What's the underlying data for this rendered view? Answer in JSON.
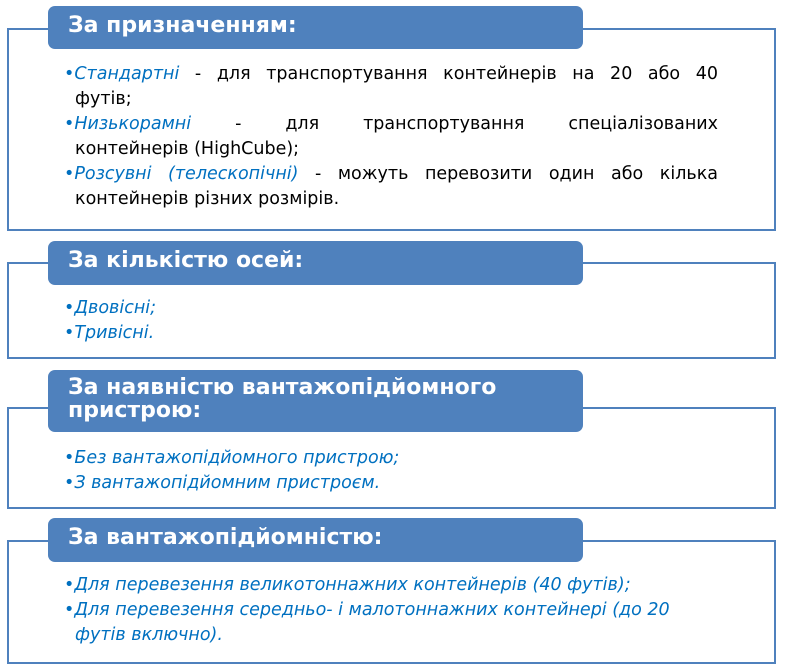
{
  "colors": {
    "header": "#4f81bd",
    "border": "#4f81bd",
    "accent_text": "#0070c0"
  },
  "bullet": "•",
  "sections": [
    {
      "title": "За призначенням:",
      "items": [
        {
          "term": "Стандартні",
          "line1": " - для транспортування контейнерів на 20 або 40",
          "rest": "футів;"
        },
        {
          "term": "Низькорамні",
          "line1": " - для транспортування спеціалізованих",
          "rest": "контейнерів (HighCube);"
        },
        {
          "term": "Розсувні (телескопічні)",
          "line1": " - можуть перевозити один або кілька",
          "rest": "контейнерів різних розмірів."
        }
      ]
    },
    {
      "title": "За кількістю осей:",
      "items": [
        {
          "term": "Двовісні;"
        },
        {
          "term": "Тривісні."
        }
      ]
    },
    {
      "title": "За наявністю вантажопідйомного пристрою:",
      "items": [
        {
          "term": "Без вантажопідйомного пристрою;"
        },
        {
          "term": "З вантажопідйомним пристроєм."
        }
      ]
    },
    {
      "title": "За вантажопідйомністю:",
      "items": [
        {
          "term": "Для перевезення великотоннажних контейнерів (40 футів);"
        },
        {
          "term": "Для перевезення середньо- і малотоннажних контейнері (до 20",
          "rest": "футів включно)."
        }
      ]
    }
  ]
}
